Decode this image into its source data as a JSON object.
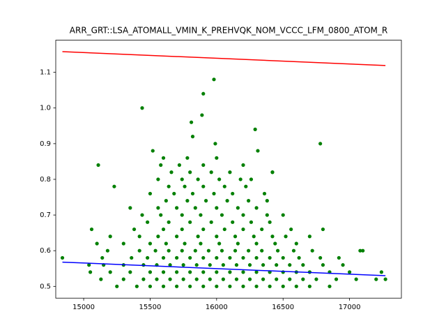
{
  "chart_data": {
    "type": "scatter",
    "title": "ARR_GRT::LSA_ATOMALL_VMIN_K_PREHVQK_NOM_VCCC_LFM_0800_ATOM_R",
    "xlim": [
      14790,
      17390
    ],
    "xticks": [
      15000,
      15500,
      16000,
      16500,
      17000
    ],
    "ylim": [
      0.467,
      1.19
    ],
    "yticks": [
      0.5,
      0.6,
      0.7,
      0.8,
      0.9,
      {
        "value": 1,
        "label": "1.0"
      },
      1.1
    ],
    "series": [
      {
        "style": "markers",
        "color": "#008000",
        "x": [
          15250,
          15400,
          15500,
          15600,
          15700,
          15800,
          15900,
          16000,
          16100,
          16200,
          16300,
          16400,
          16500,
          16600,
          16700,
          16850,
          15130,
          15300,
          15450,
          15550,
          15650,
          15750,
          15850,
          15950,
          16050,
          16150,
          16250,
          16350,
          16450,
          16550,
          16650,
          16750,
          16900,
          17050,
          17200,
          15050,
          15200,
          15350,
          15500,
          15600,
          15700,
          15800,
          15900,
          16000,
          16100,
          16200,
          16300,
          16400,
          16500,
          16600,
          16700,
          16850,
          17000,
          15040,
          15150,
          15300,
          15450,
          15550,
          15650,
          15750,
          15850,
          15950,
          16050,
          16150,
          16250,
          16350,
          16450,
          16550,
          16650,
          16800,
          16950,
          15140,
          15360,
          15480,
          15600,
          15700,
          15800,
          15900,
          16000,
          16100,
          16200,
          16300,
          16400,
          16500,
          16620,
          16780,
          16920,
          15180,
          15420,
          15540,
          15640,
          15740,
          15840,
          15940,
          16040,
          16140,
          16240,
          16340,
          16460,
          16580,
          16720,
          17080,
          15100,
          15300,
          15500,
          15620,
          15760,
          15880,
          16020,
          16160,
          16300,
          16440,
          16600,
          15200,
          15420,
          15560,
          15700,
          15860,
          16000,
          16140,
          16280,
          16420,
          16520,
          16700,
          15060,
          15380,
          15600,
          15740,
          15900,
          16060,
          16200,
          16340,
          16560,
          16800,
          15480,
          15640,
          15800,
          15960,
          16120,
          16260,
          16400,
          15440,
          15580,
          15740,
          15880,
          16040,
          16200,
          16380,
          16500,
          15560,
          15700,
          15840,
          16000,
          16160,
          16300,
          15620,
          15780,
          15920,
          16080,
          16240,
          16380,
          15500,
          15680,
          15820,
          15980,
          16120,
          16360,
          15640,
          15760,
          15900,
          16060,
          16220,
          15560,
          15740,
          15860,
          16020,
          16180,
          16260,
          15660,
          15800,
          15960,
          16100,
          16420,
          15580,
          15720,
          15900,
          16200,
          15600,
          15780,
          16000,
          15440,
          15900,
          15980,
          15890,
          15810,
          16290,
          15820,
          15990,
          16780,
          15110,
          15230,
          15350,
          15520,
          16310,
          16420,
          14840,
          17270,
          17240,
          17100
        ],
        "values": [
          0.5,
          0.5,
          0.5,
          0.5,
          0.5,
          0.5,
          0.5,
          0.5,
          0.5,
          0.5,
          0.5,
          0.5,
          0.5,
          0.5,
          0.5,
          0.5,
          0.52,
          0.52,
          0.52,
          0.52,
          0.52,
          0.52,
          0.52,
          0.52,
          0.52,
          0.52,
          0.52,
          0.52,
          0.52,
          0.52,
          0.52,
          0.52,
          0.52,
          0.52,
          0.52,
          0.54,
          0.54,
          0.54,
          0.54,
          0.54,
          0.54,
          0.54,
          0.54,
          0.54,
          0.54,
          0.54,
          0.54,
          0.54,
          0.54,
          0.54,
          0.54,
          0.54,
          0.54,
          0.56,
          0.56,
          0.56,
          0.56,
          0.56,
          0.56,
          0.56,
          0.56,
          0.56,
          0.56,
          0.56,
          0.56,
          0.56,
          0.56,
          0.56,
          0.56,
          0.56,
          0.56,
          0.58,
          0.58,
          0.58,
          0.58,
          0.58,
          0.58,
          0.58,
          0.58,
          0.58,
          0.58,
          0.58,
          0.58,
          0.58,
          0.58,
          0.58,
          0.58,
          0.6,
          0.6,
          0.6,
          0.6,
          0.6,
          0.6,
          0.6,
          0.6,
          0.6,
          0.6,
          0.6,
          0.6,
          0.6,
          0.6,
          0.6,
          0.62,
          0.62,
          0.62,
          0.62,
          0.62,
          0.62,
          0.62,
          0.62,
          0.62,
          0.62,
          0.62,
          0.64,
          0.64,
          0.64,
          0.64,
          0.64,
          0.64,
          0.64,
          0.64,
          0.64,
          0.64,
          0.64,
          0.66,
          0.66,
          0.66,
          0.66,
          0.66,
          0.66,
          0.66,
          0.66,
          0.66,
          0.66,
          0.68,
          0.68,
          0.68,
          0.68,
          0.68,
          0.68,
          0.68,
          0.7,
          0.7,
          0.7,
          0.7,
          0.7,
          0.7,
          0.7,
          0.7,
          0.72,
          0.72,
          0.72,
          0.72,
          0.72,
          0.72,
          0.74,
          0.74,
          0.74,
          0.74,
          0.74,
          0.74,
          0.76,
          0.76,
          0.76,
          0.76,
          0.76,
          0.76,
          0.78,
          0.78,
          0.78,
          0.78,
          0.78,
          0.8,
          0.8,
          0.8,
          0.8,
          0.8,
          0.8,
          0.82,
          0.82,
          0.82,
          0.82,
          0.82,
          0.84,
          0.84,
          0.84,
          0.84,
          0.86,
          0.86,
          0.86,
          1.0,
          1.04,
          1.08,
          0.98,
          0.96,
          0.94,
          0.92,
          0.9,
          0.9,
          0.84,
          0.78,
          0.72,
          0.88,
          0.88,
          0.82,
          0.58,
          0.52,
          0.54,
          0.6
        ]
      },
      {
        "style": "line",
        "color": "#ff0000",
        "x": [
          14840,
          17270
        ],
        "values": [
          1.158,
          1.119
        ]
      },
      {
        "style": "line",
        "color": "#0000ff",
        "x": [
          14840,
          17270
        ],
        "values": [
          0.568,
          0.53
        ]
      }
    ]
  }
}
